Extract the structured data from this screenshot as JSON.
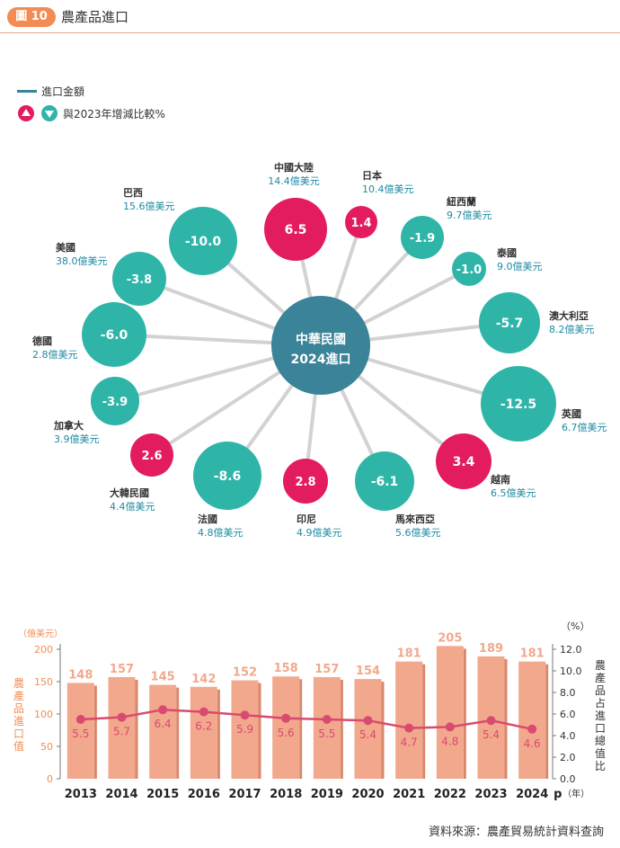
{
  "header": {
    "badge": "圖 10",
    "title": "農產品進口"
  },
  "legend": {
    "amount_label": "進口金額",
    "change_label": "與2023年增減比較%",
    "up_icon": "triangle-up-icon",
    "down_icon": "triangle-down-icon"
  },
  "colors": {
    "teal": "#2fb5a8",
    "pink": "#e31c5f",
    "hub": "#3a8399",
    "bar": "#f2a88c",
    "line": "#d94a70",
    "axis_text": "#f28c52",
    "spoke": "#d2d2d2",
    "label": "#1e8aa3"
  },
  "source": "資料來源：農產貿易統計資料查詢",
  "chart_data": [
    {
      "type": "bubble",
      "hub": {
        "line1": "中華民國",
        "line2": "2024進口"
      },
      "partners": [
        {
          "name": "中國大陸",
          "amount": "14.4億美元",
          "change": 6.5
        },
        {
          "name": "日本",
          "amount": "10.4億美元",
          "change": 1.4
        },
        {
          "name": "紐西蘭",
          "amount": "9.7億美元",
          "change": -1.9
        },
        {
          "name": "泰國",
          "amount": "9.0億美元",
          "change": -1.0
        },
        {
          "name": "澳大利亞",
          "amount": "8.2億美元",
          "change": -5.7
        },
        {
          "name": "英國",
          "amount": "6.7億美元",
          "change": -12.5
        },
        {
          "name": "越南",
          "amount": "6.5億美元",
          "change": 3.4
        },
        {
          "name": "馬來西亞",
          "amount": "5.6億美元",
          "change": -6.1
        },
        {
          "name": "印尼",
          "amount": "4.9億美元",
          "change": 2.8
        },
        {
          "name": "法國",
          "amount": "4.8億美元",
          "change": -8.6
        },
        {
          "name": "大韓民國",
          "amount": "4.4億美元",
          "change": 2.6
        },
        {
          "name": "加拿大",
          "amount": "3.9億美元",
          "change": -3.9
        },
        {
          "name": "德國",
          "amount": "2.8億美元",
          "change": -6.0
        },
        {
          "name": "美國",
          "amount": "38.0億美元",
          "change": -3.8
        },
        {
          "name": "巴西",
          "amount": "15.6億美元",
          "change": -10.0
        }
      ]
    },
    {
      "type": "bar+line",
      "categories": [
        "2013",
        "2014",
        "2015",
        "2016",
        "2017",
        "2018",
        "2019",
        "2020",
        "2021",
        "2022",
        "2023",
        "2024"
      ],
      "p_marker": "p",
      "xunit": "（年）",
      "left_unit": "（億美元）",
      "right_unit": "（%）",
      "ylabel_left": "農產品進口值",
      "ylabel_right": "農產品占進口總值比",
      "ylim_left": [
        0,
        200
      ],
      "yticks_left": [
        "0",
        "50",
        "100",
        "150",
        "200"
      ],
      "ylim_right": [
        0,
        12
      ],
      "yticks_right": [
        "0.0",
        "2.0",
        "4.0",
        "6.0",
        "8.0",
        "10.0",
        "12.0"
      ],
      "series": [
        {
          "values": [
            148,
            157,
            145,
            142,
            152,
            158,
            157,
            154,
            181,
            205,
            189,
            181
          ]
        },
        {
          "values": [
            5.5,
            5.7,
            6.4,
            6.2,
            5.9,
            5.6,
            5.5,
            5.4,
            4.7,
            4.8,
            5.4,
            4.6
          ]
        }
      ]
    }
  ]
}
